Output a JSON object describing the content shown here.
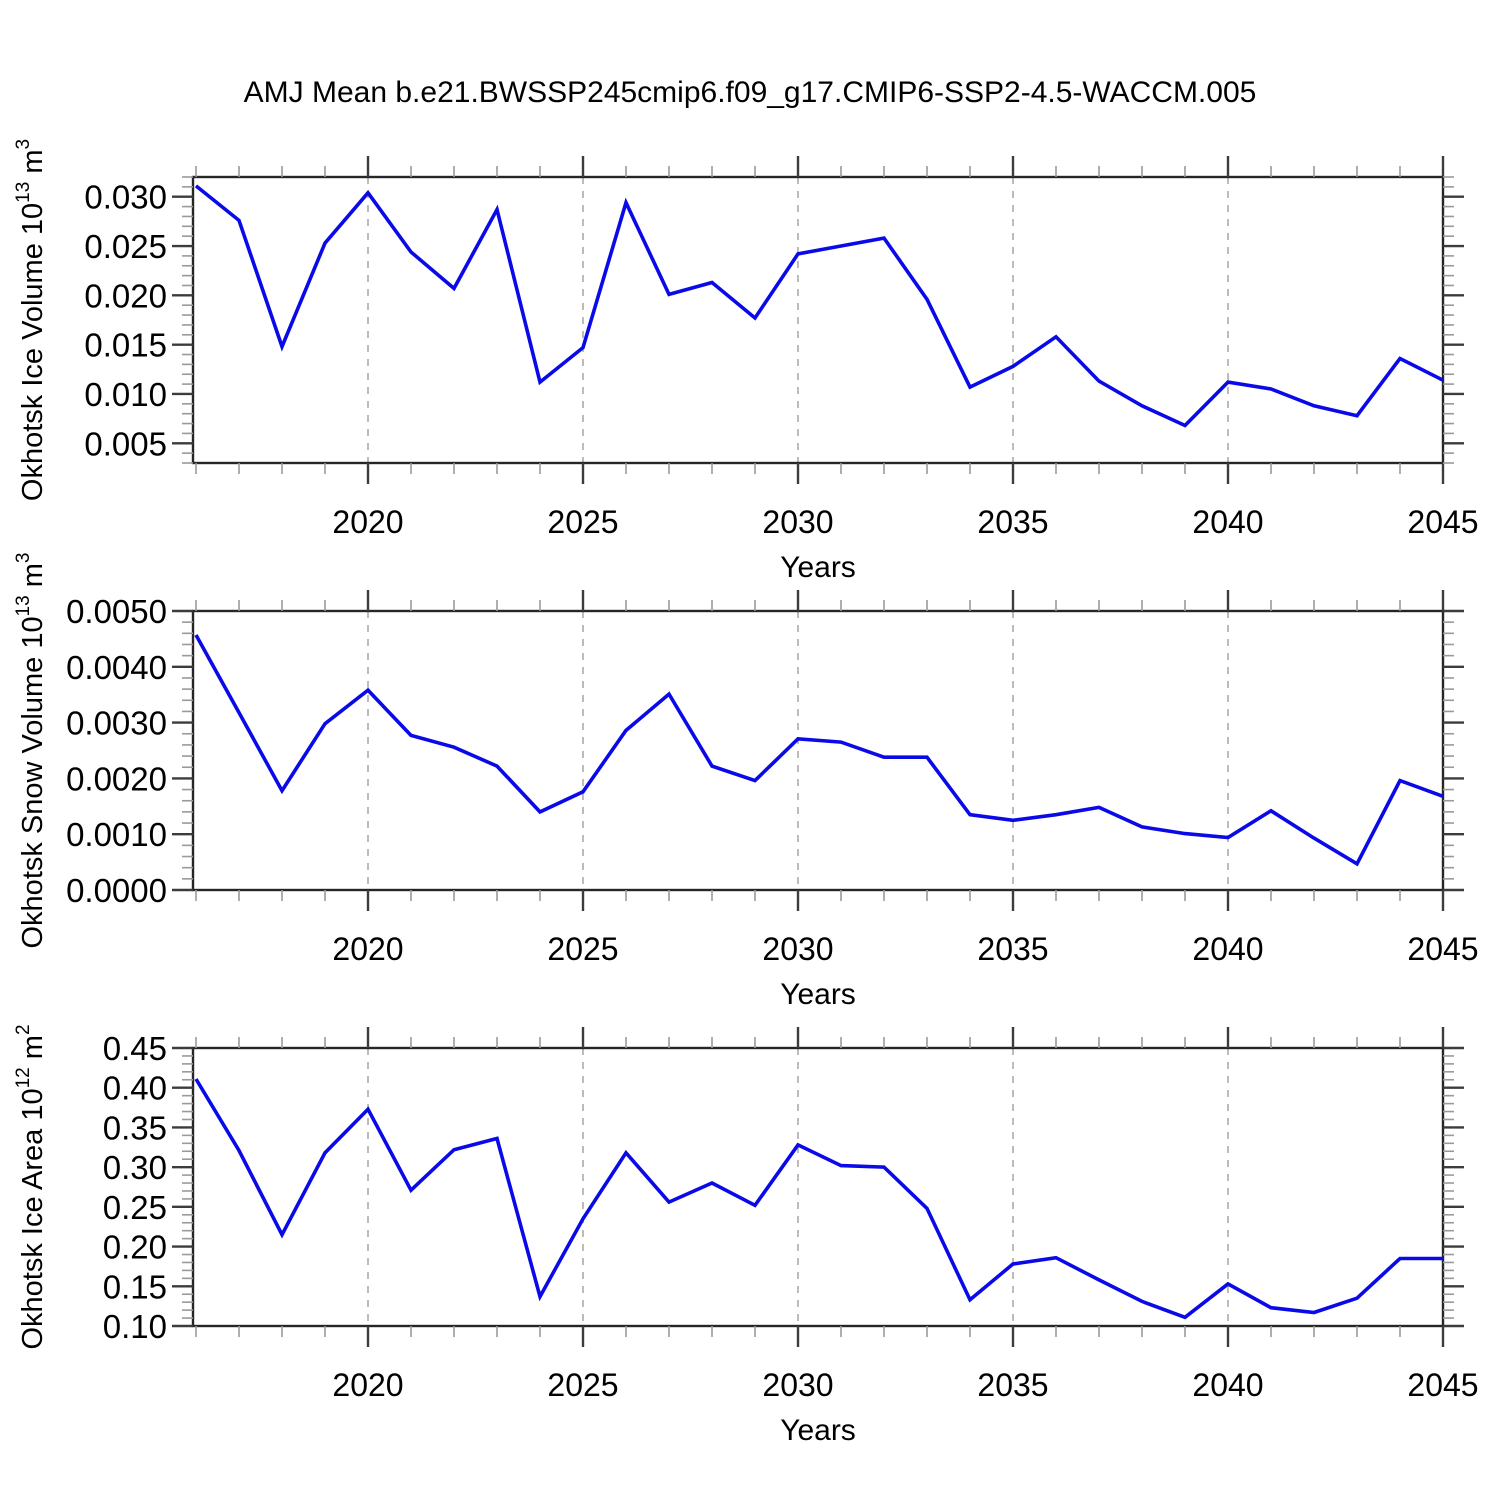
{
  "title": "AMJ Mean b.e21.BWSSP245cmip6.f09_g17.CMIP6-SSP2-4.5-WACCM.005",
  "colors": {
    "background": "#ffffff",
    "line": "#0a0ae8",
    "frame": "#262626",
    "grid": "#b5b5b5",
    "tick_major": "#3c3c3c",
    "tick_minor": "#9a9a9a",
    "text": "#000000"
  },
  "xaxis": {
    "title": "Years",
    "xlim": [
      2015.93,
      2045
    ],
    "major_ticks": [
      2020,
      2025,
      2030,
      2035,
      2040,
      2045
    ],
    "minor_step": 1,
    "grid_years": [
      2020,
      2025,
      2030,
      2035,
      2040
    ]
  },
  "chart_data": [
    {
      "type": "line",
      "name": "okhotsk-ice-volume",
      "ylabel": {
        "base": "Okhotsk Ice Volume 10",
        "exp": "13",
        "unit": " m",
        "unit_exp": "3"
      },
      "ylim": [
        0.003,
        0.032
      ],
      "yticks": {
        "values": [
          0.005,
          0.01,
          0.015,
          0.02,
          0.025,
          0.03
        ],
        "labels": [
          "0.005",
          "0.010",
          "0.015",
          "0.020",
          "0.025",
          "0.030"
        ],
        "minor_step": 0.001
      },
      "x": [
        2016,
        2017,
        2018,
        2019,
        2020,
        2021,
        2022,
        2023,
        2024,
        2025,
        2026,
        2027,
        2028,
        2029,
        2030,
        2031,
        2032,
        2033,
        2034,
        2035,
        2036,
        2037,
        2038,
        2039,
        2040,
        2041,
        2042,
        2043,
        2044,
        2045
      ],
      "values": [
        0.0311,
        0.0276,
        0.0148,
        0.0253,
        0.0304,
        0.0244,
        0.0207,
        0.0287,
        0.0112,
        0.0147,
        0.0294,
        0.0201,
        0.0213,
        0.0177,
        0.0242,
        0.025,
        0.0258,
        0.0196,
        0.0107,
        0.0128,
        0.0158,
        0.0113,
        0.0088,
        0.0068,
        0.0112,
        0.0105,
        0.0088,
        0.0078,
        0.0136,
        0.0114
      ]
    },
    {
      "type": "line",
      "name": "okhotsk-snow-volume",
      "ylabel": {
        "base": "Okhotsk Snow Volume 10",
        "exp": "13",
        "unit": " m",
        "unit_exp": "3"
      },
      "ylim": [
        0.0,
        0.005
      ],
      "yticks": {
        "values": [
          0.0,
          0.001,
          0.002,
          0.003,
          0.004,
          0.005
        ],
        "labels": [
          "0.0000",
          "0.0010",
          "0.0020",
          "0.0030",
          "0.0040",
          "0.0050"
        ],
        "minor_step": 0.0002
      },
      "x": [
        2016,
        2017,
        2018,
        2019,
        2020,
        2021,
        2022,
        2023,
        2024,
        2025,
        2026,
        2027,
        2028,
        2029,
        2030,
        2031,
        2032,
        2033,
        2034,
        2035,
        2036,
        2037,
        2038,
        2039,
        2040,
        2041,
        2042,
        2043,
        2044,
        2045
      ],
      "values": [
        0.00457,
        0.00318,
        0.00178,
        0.00298,
        0.00358,
        0.00277,
        0.00256,
        0.00222,
        0.0014,
        0.00176,
        0.00286,
        0.00351,
        0.00222,
        0.00196,
        0.00271,
        0.00265,
        0.00238,
        0.00238,
        0.00135,
        0.00125,
        0.00135,
        0.00148,
        0.00113,
        0.00101,
        0.00094,
        0.00142,
        0.00093,
        0.00047,
        0.00196,
        0.00168
      ]
    },
    {
      "type": "line",
      "name": "okhotsk-ice-area",
      "ylabel": {
        "base": "Okhotsk Ice Area 10",
        "exp": "12",
        "unit": " m",
        "unit_exp": "2"
      },
      "ylim": [
        0.1,
        0.45
      ],
      "yticks": {
        "values": [
          0.1,
          0.15,
          0.2,
          0.25,
          0.3,
          0.35,
          0.4,
          0.45
        ],
        "labels": [
          "0.10",
          "0.15",
          "0.20",
          "0.25",
          "0.30",
          "0.35",
          "0.40",
          "0.45"
        ],
        "minor_step": 0.01
      },
      "x": [
        2016,
        2017,
        2018,
        2019,
        2020,
        2021,
        2022,
        2023,
        2024,
        2025,
        2026,
        2027,
        2028,
        2029,
        2030,
        2031,
        2032,
        2033,
        2034,
        2035,
        2036,
        2037,
        2038,
        2039,
        2040,
        2041,
        2042,
        2043,
        2044,
        2045
      ],
      "values": [
        0.411,
        0.321,
        0.215,
        0.318,
        0.373,
        0.271,
        0.322,
        0.336,
        0.137,
        0.235,
        0.318,
        0.256,
        0.28,
        0.252,
        0.328,
        0.302,
        0.3,
        0.248,
        0.133,
        0.178,
        0.186,
        0.158,
        0.131,
        0.111,
        0.153,
        0.123,
        0.117,
        0.135,
        0.185,
        0.185
      ]
    }
  ]
}
